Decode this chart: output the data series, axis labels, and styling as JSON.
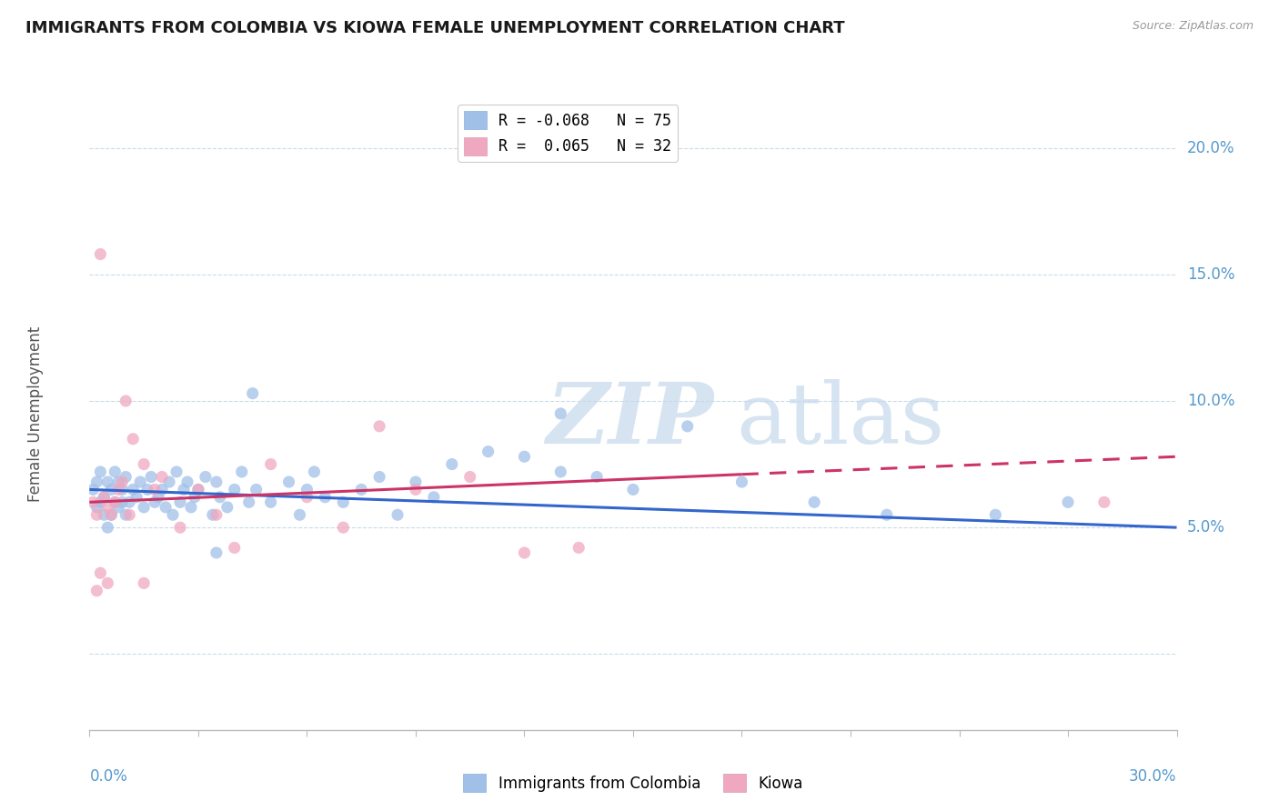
{
  "title": "IMMIGRANTS FROM COLOMBIA VS KIOWA FEMALE UNEMPLOYMENT CORRELATION CHART",
  "source": "Source: ZipAtlas.com",
  "ylabel": "Female Unemployment",
  "title_color": "#1a1a1a",
  "source_color": "#999999",
  "axis_color": "#5599cc",
  "grid_color": "#c8dde8",
  "scatter_blue_color": "#a0c0e8",
  "scatter_pink_color": "#f0a8c0",
  "trend_blue_color": "#3366cc",
  "trend_pink_color": "#cc3366",
  "xlim": [
    0.0,
    0.3
  ],
  "ylim": [
    -0.03,
    0.22
  ],
  "yticks": [
    0.0,
    0.05,
    0.1,
    0.15,
    0.2
  ],
  "ytick_labels": [
    "",
    "5.0%",
    "10.0%",
    "15.0%",
    "20.0%"
  ],
  "watermark_zip": "ZIP",
  "watermark_atlas": "atlas",
  "blue_line_y_start": 0.065,
  "blue_line_y_end": 0.05,
  "pink_line_x_start": 0.0,
  "pink_line_x_end": 0.18,
  "pink_line_x_dash_start": 0.18,
  "pink_line_x_dash_end": 0.3,
  "pink_line_y_start": 0.06,
  "pink_line_y_end": 0.071,
  "pink_line_y_dash_end": 0.078,
  "blue_scatter_x": [
    0.001,
    0.002,
    0.002,
    0.003,
    0.003,
    0.004,
    0.004,
    0.005,
    0.005,
    0.006,
    0.006,
    0.007,
    0.007,
    0.008,
    0.008,
    0.009,
    0.009,
    0.01,
    0.01,
    0.011,
    0.012,
    0.013,
    0.014,
    0.015,
    0.016,
    0.017,
    0.018,
    0.019,
    0.02,
    0.021,
    0.022,
    0.023,
    0.024,
    0.025,
    0.026,
    0.027,
    0.028,
    0.029,
    0.03,
    0.032,
    0.034,
    0.035,
    0.036,
    0.038,
    0.04,
    0.042,
    0.044,
    0.046,
    0.05,
    0.055,
    0.058,
    0.06,
    0.062,
    0.065,
    0.07,
    0.075,
    0.08,
    0.085,
    0.09,
    0.095,
    0.1,
    0.11,
    0.12,
    0.13,
    0.14,
    0.15,
    0.165,
    0.18,
    0.2,
    0.22,
    0.25,
    0.27,
    0.13,
    0.045,
    0.035
  ],
  "blue_scatter_y": [
    0.065,
    0.068,
    0.058,
    0.072,
    0.06,
    0.062,
    0.055,
    0.068,
    0.05,
    0.065,
    0.055,
    0.06,
    0.072,
    0.058,
    0.068,
    0.06,
    0.065,
    0.055,
    0.07,
    0.06,
    0.065,
    0.062,
    0.068,
    0.058,
    0.065,
    0.07,
    0.06,
    0.062,
    0.065,
    0.058,
    0.068,
    0.055,
    0.072,
    0.06,
    0.065,
    0.068,
    0.058,
    0.062,
    0.065,
    0.07,
    0.055,
    0.068,
    0.062,
    0.058,
    0.065,
    0.072,
    0.06,
    0.065,
    0.06,
    0.068,
    0.055,
    0.065,
    0.072,
    0.062,
    0.06,
    0.065,
    0.07,
    0.055,
    0.068,
    0.062,
    0.075,
    0.08,
    0.078,
    0.072,
    0.07,
    0.065,
    0.09,
    0.068,
    0.06,
    0.055,
    0.055,
    0.06,
    0.095,
    0.103,
    0.04
  ],
  "pink_scatter_x": [
    0.001,
    0.002,
    0.003,
    0.004,
    0.005,
    0.006,
    0.007,
    0.008,
    0.009,
    0.01,
    0.011,
    0.012,
    0.015,
    0.018,
    0.02,
    0.025,
    0.03,
    0.035,
    0.04,
    0.05,
    0.06,
    0.07,
    0.08,
    0.09,
    0.105,
    0.12,
    0.135,
    0.002,
    0.003,
    0.005,
    0.015,
    0.28
  ],
  "pink_scatter_y": [
    0.06,
    0.055,
    0.158,
    0.062,
    0.058,
    0.055,
    0.06,
    0.065,
    0.068,
    0.1,
    0.055,
    0.085,
    0.075,
    0.065,
    0.07,
    0.05,
    0.065,
    0.055,
    0.042,
    0.075,
    0.062,
    0.05,
    0.09,
    0.065,
    0.07,
    0.04,
    0.042,
    0.025,
    0.032,
    0.028,
    0.028,
    0.06
  ]
}
